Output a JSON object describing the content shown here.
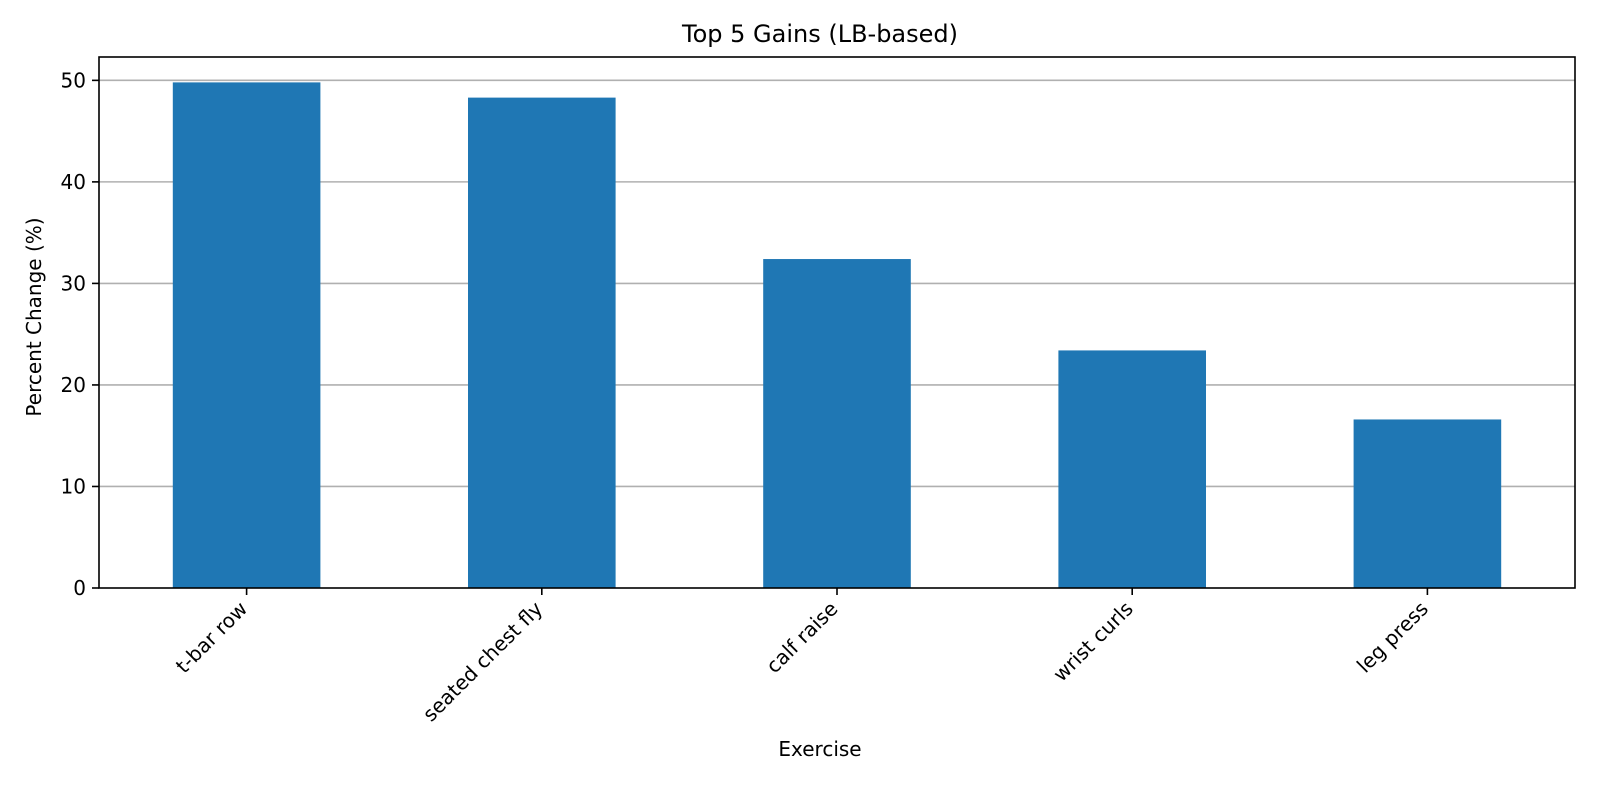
{
  "chart_data": {
    "type": "bar",
    "title": "Top 5 Gains (LB-based)",
    "xlabel": "Exercise",
    "ylabel": "Percent Change (%)",
    "categories": [
      "t-bar row",
      "seated chest fly",
      "calf raise",
      "wrist curls",
      "leg press"
    ],
    "values": [
      49.8,
      48.3,
      32.4,
      23.4,
      16.6
    ],
    "ylim": [
      0,
      52.3
    ],
    "yticks": [
      0,
      10,
      20,
      30,
      40,
      50
    ],
    "grid": "horizontal",
    "legend": "none",
    "bar_color": "#1f77b4"
  }
}
